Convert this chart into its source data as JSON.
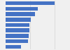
{
  "values": [
    100,
    65,
    60,
    52,
    48,
    48,
    47,
    46,
    32
  ],
  "bar_color": "#4472c4",
  "background_color": "#f0f0f0",
  "plot_bg_color": "#f0f0f0",
  "xlim": [
    0,
    130
  ],
  "bar_height": 0.72,
  "grid_color": "#cccccc",
  "grid_values": [
    50,
    100
  ]
}
